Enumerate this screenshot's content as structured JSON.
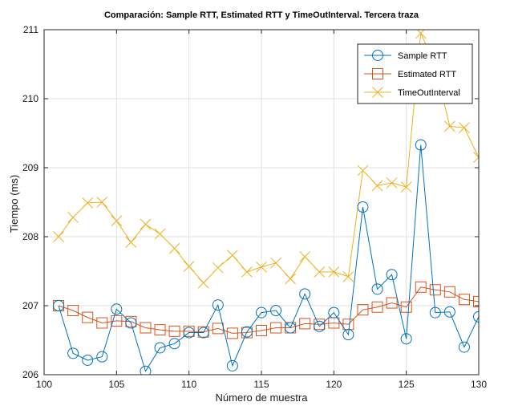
{
  "chart_data": {
    "type": "line",
    "title": "Comparación: Sample RTT, Estimated RTT y TimeOutInterval. Tercera traza",
    "xlabel": "Número de muestra",
    "ylabel": "Tiempo (ms)",
    "xlim": [
      100,
      130
    ],
    "ylim": [
      206,
      211
    ],
    "xticks": [
      100,
      105,
      110,
      115,
      120,
      125,
      130
    ],
    "yticks": [
      206,
      207,
      208,
      209,
      210,
      211
    ],
    "grid": true,
    "legend_position": "top-right",
    "x": [
      101,
      102,
      103,
      104,
      105,
      106,
      107,
      108,
      109,
      110,
      111,
      112,
      113,
      114,
      115,
      116,
      117,
      118,
      119,
      120,
      121,
      122,
      123,
      124,
      125,
      126,
      127,
      128,
      129,
      130
    ],
    "series": [
      {
        "name": "Sample RTT",
        "color": "#0072bd",
        "marker": "circle",
        "values": [
          207.0,
          206.31,
          206.21,
          206.26,
          206.95,
          206.75,
          206.05,
          206.39,
          206.45,
          206.61,
          206.61,
          207.01,
          206.13,
          206.62,
          206.9,
          206.93,
          206.68,
          207.17,
          206.7,
          206.9,
          206.58,
          208.43,
          207.24,
          207.45,
          206.52,
          209.33,
          206.9,
          206.91,
          206.4,
          206.84
        ]
      },
      {
        "name": "Estimated RTT",
        "color": "#d95319",
        "marker": "square",
        "values": [
          207.0,
          206.93,
          206.83,
          206.75,
          206.78,
          206.77,
          206.68,
          206.65,
          206.63,
          206.63,
          206.62,
          206.67,
          206.6,
          206.61,
          206.64,
          206.68,
          206.68,
          206.74,
          206.73,
          206.75,
          206.73,
          206.94,
          206.98,
          207.04,
          206.98,
          207.27,
          207.23,
          207.2,
          207.09,
          207.06
        ]
      },
      {
        "name": "TimeOutInterval",
        "color": "#edb120",
        "marker": "x",
        "values": [
          208.0,
          208.28,
          208.49,
          208.5,
          208.23,
          207.92,
          208.18,
          208.04,
          207.83,
          207.57,
          207.33,
          207.55,
          207.73,
          207.49,
          207.56,
          207.62,
          207.39,
          207.71,
          207.49,
          207.49,
          207.42,
          208.96,
          208.74,
          208.78,
          208.72,
          210.95,
          210.48,
          209.6,
          209.58,
          209.15
        ]
      }
    ]
  }
}
